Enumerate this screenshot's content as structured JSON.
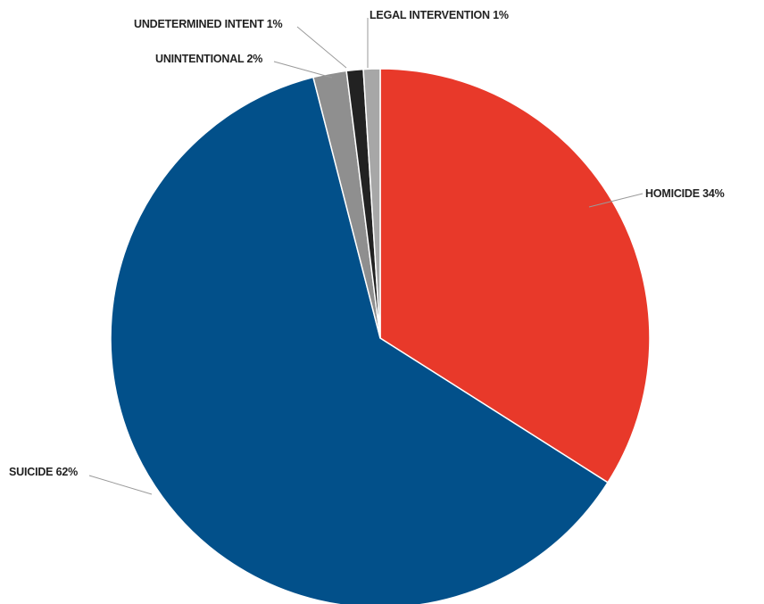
{
  "chart_data": {
    "type": "pie",
    "slices": [
      {
        "label": "HOMICIDE 34%",
        "value": 34,
        "color": "#e8392a"
      },
      {
        "label": "SUICIDE 62%",
        "value": 62,
        "color": "#02508a"
      },
      {
        "label": "UNINTENTIONAL 2%",
        "value": 2,
        "color": "#8f8f8f"
      },
      {
        "label": "UNDETERMINED INTENT 1%",
        "value": 1,
        "color": "#222222"
      },
      {
        "label": "LEGAL INTERVENTION 1%",
        "value": 1,
        "color": "#a7a7a7"
      }
    ],
    "start_angle": "12 o'clock",
    "direction": "clockwise",
    "legend": "none (direct labels)"
  }
}
